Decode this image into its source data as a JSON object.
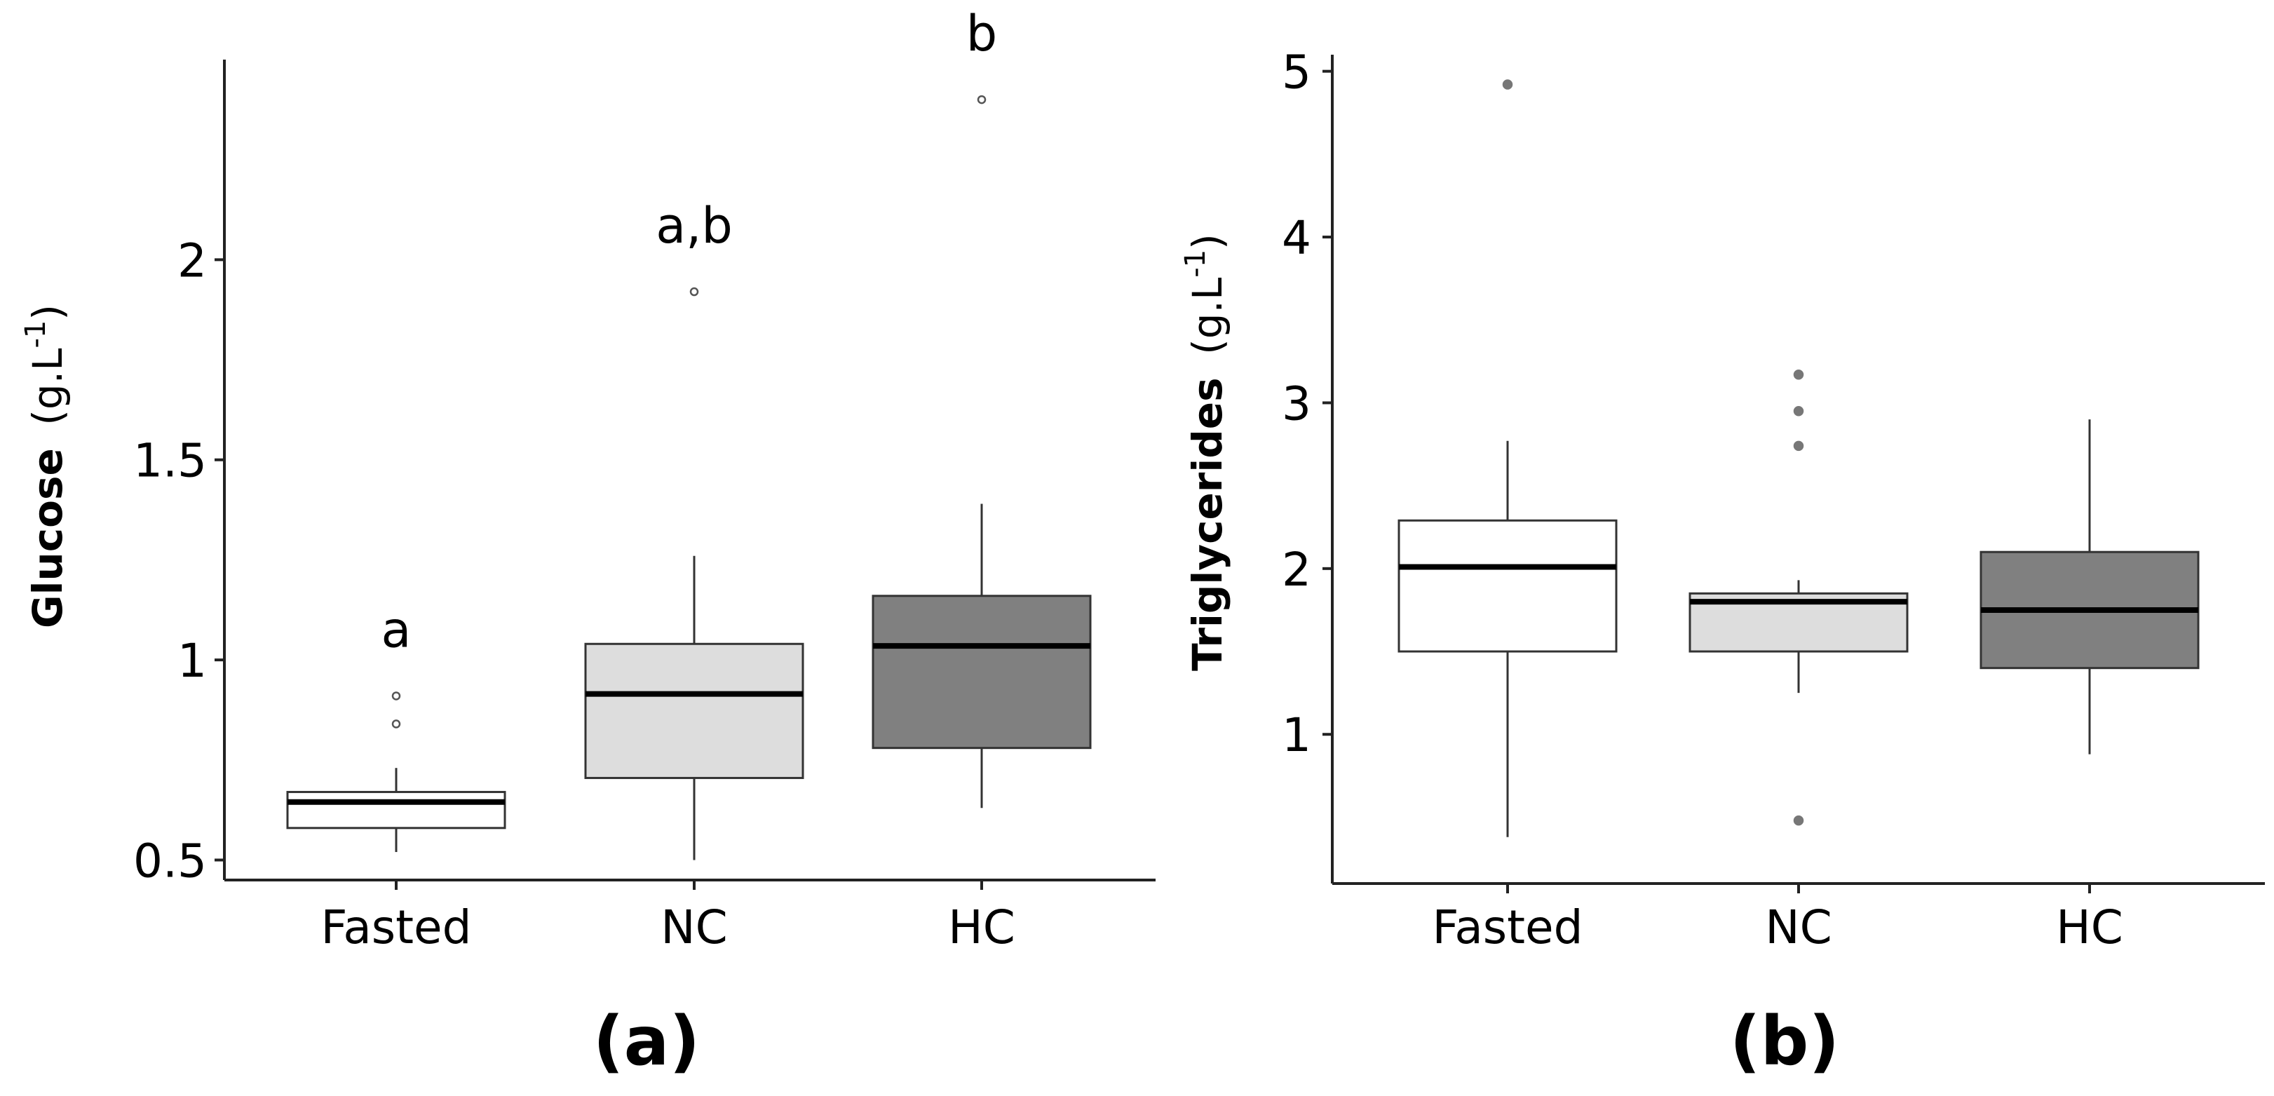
{
  "chart_data": [
    {
      "type": "box",
      "panel_label": "(a)",
      "ylabel": {
        "bold": "Glucose",
        "unit": "(g.L",
        "sup": "-1",
        "close": ")"
      },
      "categories": [
        "Fasted",
        "NC",
        "HC"
      ],
      "ylim": [
        0.45,
        2.5
      ],
      "yticks": [
        {
          "value": 0.5,
          "label": "0.5"
        },
        {
          "value": 1,
          "label": "1"
        },
        {
          "value": 1.5,
          "label": "1.5"
        },
        {
          "value": 2,
          "label": "2"
        }
      ],
      "boxes": [
        {
          "name": "Fasted",
          "fill": "#ffffff",
          "whisker_low": 0.52,
          "q1": 0.58,
          "median": 0.645,
          "q3": 0.67,
          "whisker_high": 0.73,
          "outliers": [
            0.84,
            0.91
          ],
          "sig": "a"
        },
        {
          "name": "NC",
          "fill": "#dddddd",
          "whisker_low": 0.5,
          "q1": 0.705,
          "median": 0.915,
          "q3": 1.04,
          "whisker_high": 1.26,
          "outliers": [
            1.92
          ],
          "sig": "a,b"
        },
        {
          "name": "HC",
          "fill": "#808080",
          "whisker_low": 0.63,
          "q1": 0.78,
          "median": 1.035,
          "q3": 1.16,
          "whisker_high": 1.39,
          "outliers": [
            2.4
          ],
          "sig": "b"
        }
      ]
    },
    {
      "type": "box",
      "panel_label": "(b)",
      "ylabel": {
        "bold": "Triglycerides",
        "unit": "(g.L",
        "sup": "-1",
        "close": ")"
      },
      "categories": [
        "Fasted",
        "NC",
        "HC"
      ],
      "ylim": [
        0.1,
        5.1
      ],
      "yticks": [
        {
          "value": 1,
          "label": "1"
        },
        {
          "value": 2,
          "label": "2"
        },
        {
          "value": 3,
          "label": "3"
        },
        {
          "value": 4,
          "label": "4"
        },
        {
          "value": 5,
          "label": "5"
        }
      ],
      "boxes": [
        {
          "name": "Fasted",
          "fill": "#ffffff",
          "whisker_low": 0.38,
          "q1": 1.5,
          "median": 2.01,
          "q3": 2.29,
          "whisker_high": 2.77,
          "outliers": [
            4.92
          ],
          "sig": ""
        },
        {
          "name": "NC",
          "fill": "#dddddd",
          "whisker_low": 1.25,
          "q1": 1.5,
          "median": 1.8,
          "q3": 1.85,
          "whisker_high": 1.93,
          "outliers": [
            0.48,
            2.74,
            2.95,
            3.17
          ],
          "sig": ""
        },
        {
          "name": "HC",
          "fill": "#808080",
          "whisker_low": 0.88,
          "q1": 1.4,
          "median": 1.75,
          "q3": 2.1,
          "whisker_high": 2.9,
          "outliers": [],
          "sig": ""
        }
      ]
    }
  ]
}
